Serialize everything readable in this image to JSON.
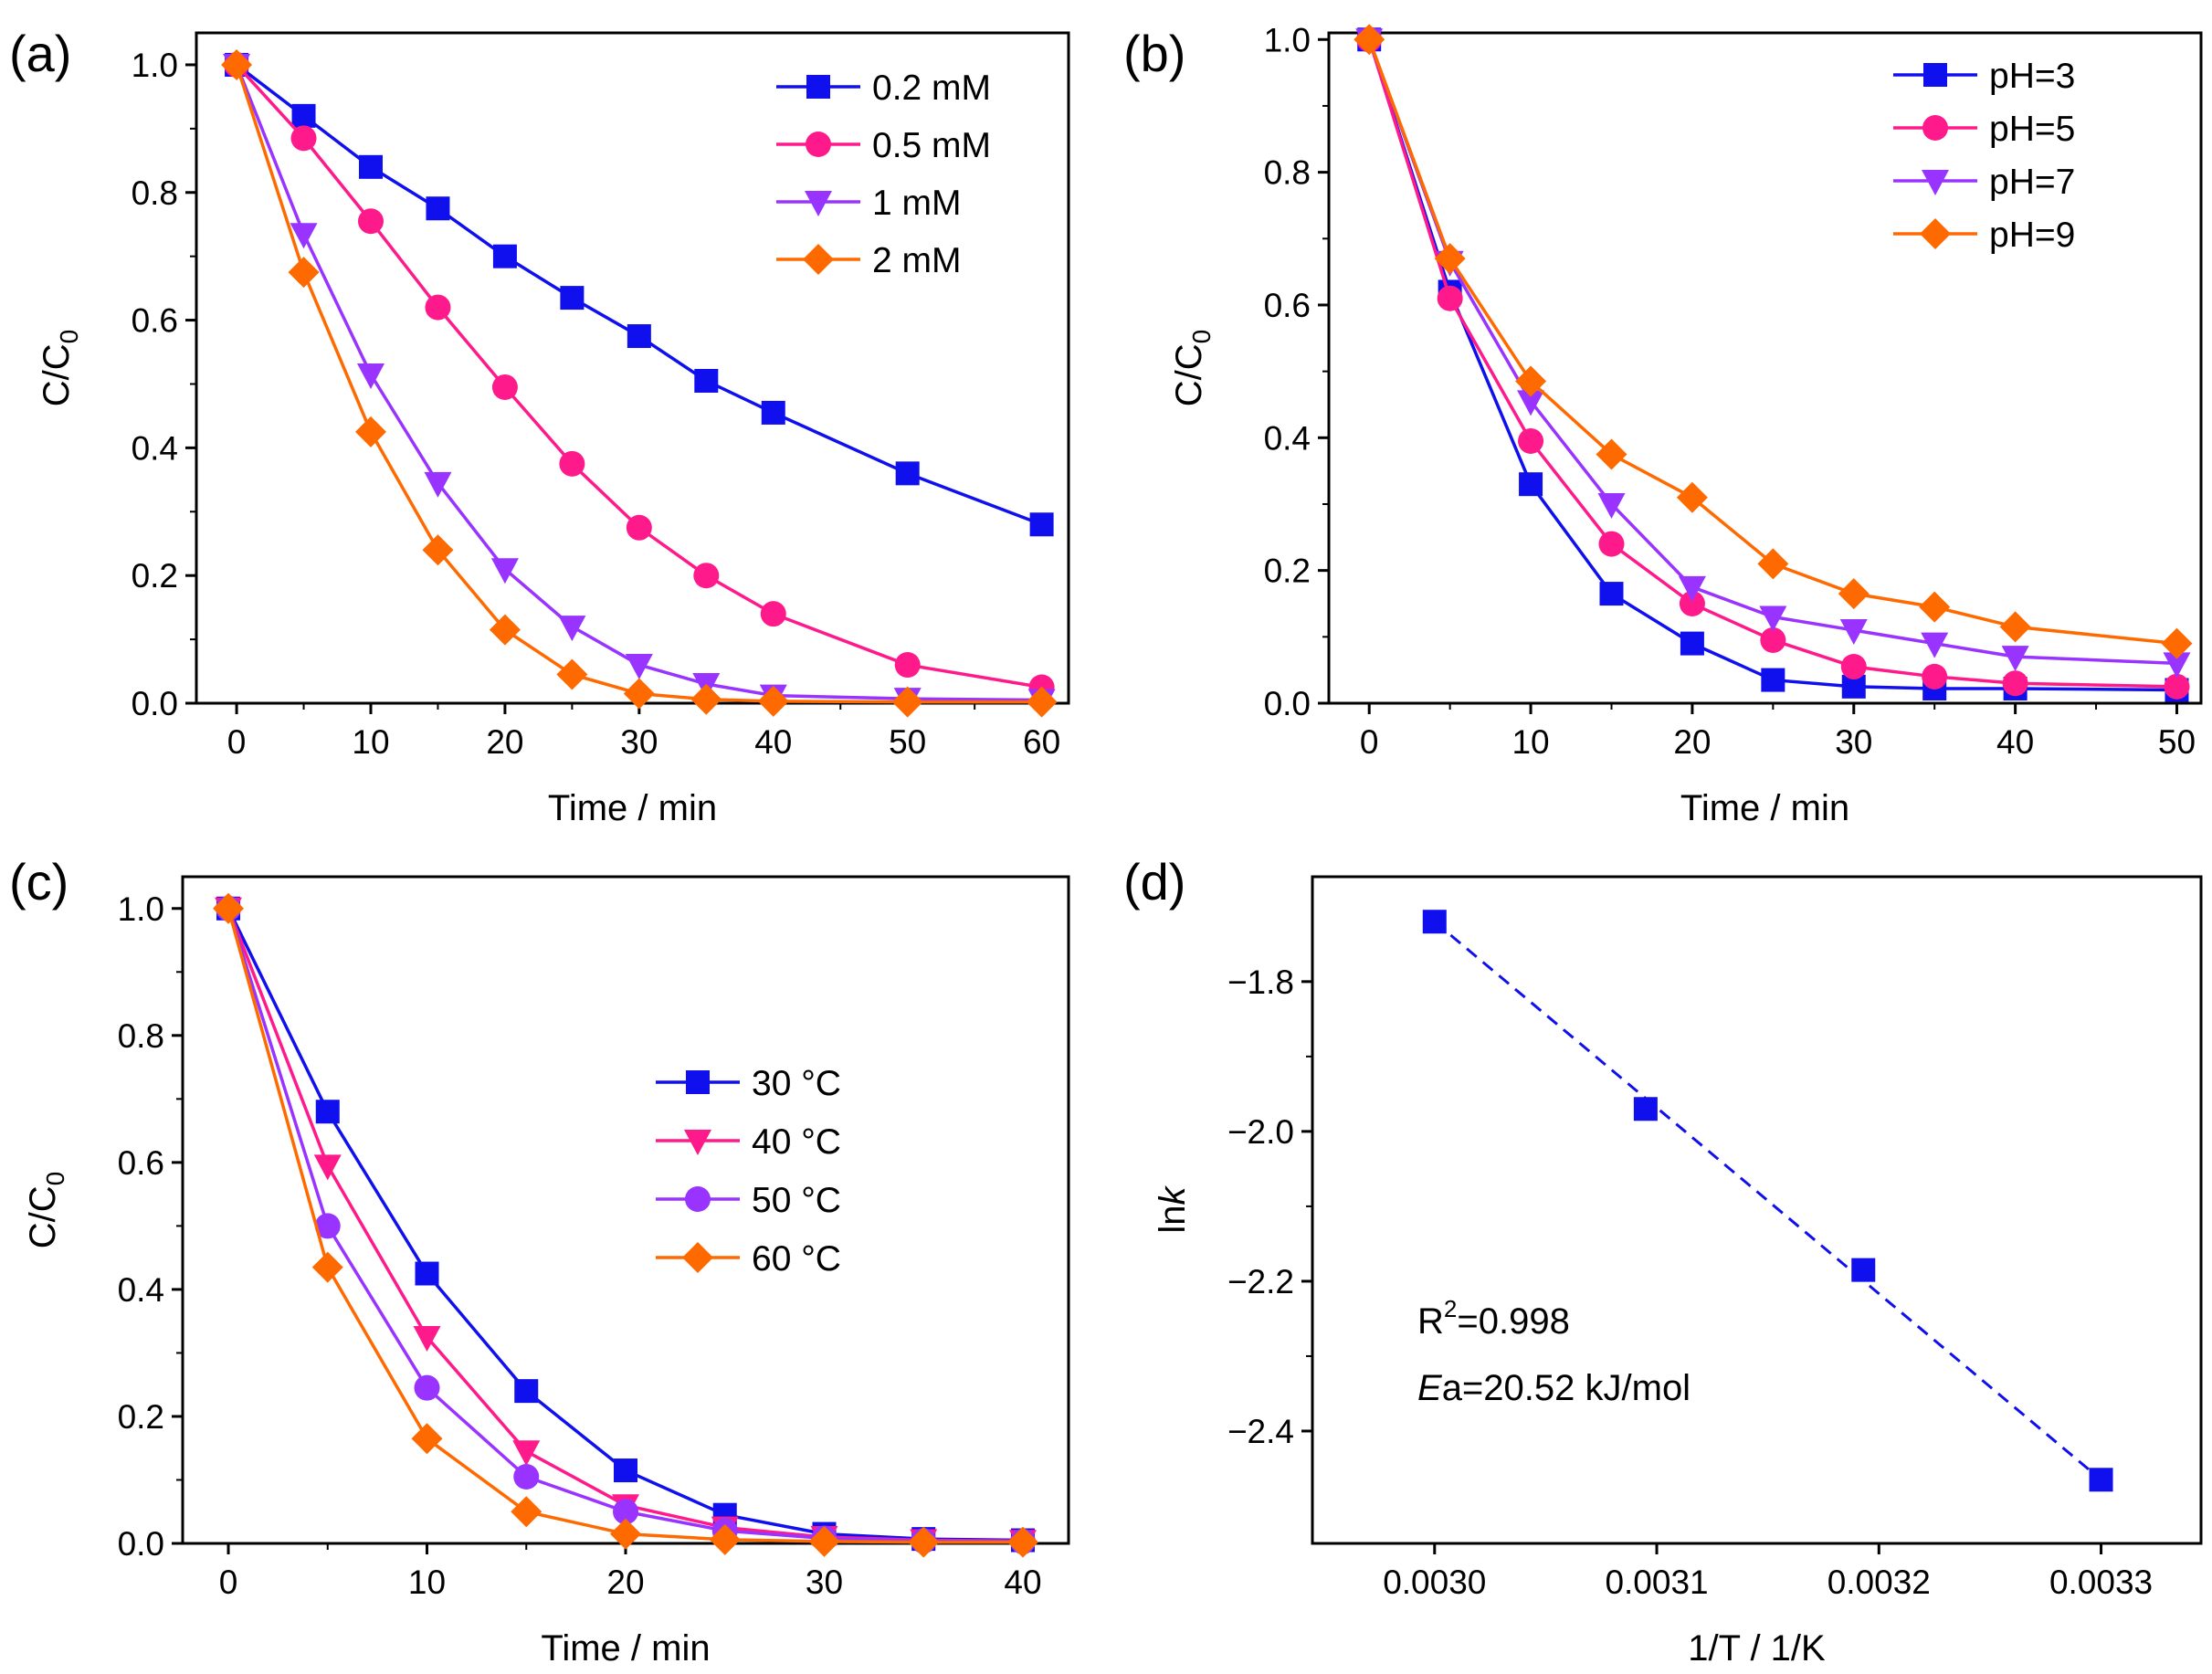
{
  "colors": {
    "blue": "#1010ee",
    "pink": "#ff1a8c",
    "purple": "#9933ff",
    "orange": "#ff6a00"
  },
  "chart_data": [
    {
      "panel": "(a)",
      "type": "line",
      "xlabel": "Time / min",
      "ylabel_main": "C/C",
      "ylabel_sub": "0",
      "xlim": [
        -3,
        62
      ],
      "ylim": [
        0,
        1.05
      ],
      "xticks": [
        0,
        10,
        20,
        30,
        40,
        50,
        60
      ],
      "yticks": [
        0.0,
        0.2,
        0.4,
        0.6,
        0.8,
        1.0
      ],
      "legend_position": "top-right",
      "series": [
        {
          "name": "0.2 mM",
          "marker": "square",
          "color": "blue",
          "x": [
            0,
            5,
            10,
            15,
            20,
            25,
            30,
            35,
            40,
            50,
            60
          ],
          "y": [
            1.0,
            0.92,
            0.84,
            0.775,
            0.7,
            0.635,
            0.575,
            0.505,
            0.455,
            0.36,
            0.28
          ]
        },
        {
          "name": "0.5 mM",
          "marker": "circle",
          "color": "pink",
          "x": [
            0,
            5,
            10,
            15,
            20,
            25,
            30,
            35,
            40,
            50,
            60
          ],
          "y": [
            1.0,
            0.885,
            0.755,
            0.62,
            0.495,
            0.375,
            0.275,
            0.2,
            0.14,
            0.06,
            0.025
          ]
        },
        {
          "name": "1 mM",
          "marker": "triangle-down",
          "color": "purple",
          "x": [
            0,
            5,
            10,
            15,
            20,
            25,
            30,
            35,
            40,
            50,
            60
          ],
          "y": [
            1.0,
            0.735,
            0.515,
            0.345,
            0.21,
            0.12,
            0.06,
            0.03,
            0.012,
            0.007,
            0.005
          ]
        },
        {
          "name": "2 mM",
          "marker": "diamond",
          "color": "orange",
          "x": [
            0,
            5,
            10,
            15,
            20,
            25,
            30,
            35,
            40,
            50,
            60
          ],
          "y": [
            1.0,
            0.675,
            0.425,
            0.24,
            0.115,
            0.045,
            0.015,
            0.006,
            0.003,
            0.002,
            0.002
          ]
        }
      ]
    },
    {
      "panel": "(b)",
      "type": "line",
      "xlabel": "Time / min",
      "ylabel_main": "C/C",
      "ylabel_sub": "0",
      "xlim": [
        -2.5,
        51.5
      ],
      "ylim": [
        0,
        1.01
      ],
      "xticks": [
        0,
        10,
        20,
        30,
        40,
        50
      ],
      "yticks": [
        0.0,
        0.2,
        0.4,
        0.6,
        0.8,
        1.0
      ],
      "legend_position": "top-right",
      "series": [
        {
          "name": "pH=3",
          "marker": "square",
          "color": "blue",
          "x": [
            0,
            5,
            10,
            15,
            20,
            25,
            30,
            35,
            40,
            50
          ],
          "y": [
            1.0,
            0.62,
            0.33,
            0.165,
            0.09,
            0.035,
            0.025,
            0.022,
            0.022,
            0.02
          ]
        },
        {
          "name": "pH=5",
          "marker": "circle",
          "color": "pink",
          "x": [
            0,
            5,
            10,
            15,
            20,
            25,
            30,
            35,
            40,
            50
          ],
          "y": [
            1.0,
            0.61,
            0.395,
            0.24,
            0.15,
            0.095,
            0.055,
            0.04,
            0.03,
            0.025
          ]
        },
        {
          "name": "pH=7",
          "marker": "triangle-down",
          "color": "purple",
          "x": [
            0,
            5,
            10,
            15,
            20,
            25,
            30,
            35,
            40,
            50
          ],
          "y": [
            1.0,
            0.665,
            0.455,
            0.3,
            0.175,
            0.13,
            0.11,
            0.09,
            0.07,
            0.06
          ]
        },
        {
          "name": "pH=9",
          "marker": "diamond",
          "color": "orange",
          "x": [
            0,
            5,
            10,
            15,
            20,
            25,
            30,
            35,
            40,
            50
          ],
          "y": [
            1.0,
            0.67,
            0.485,
            0.375,
            0.31,
            0.21,
            0.165,
            0.145,
            0.115,
            0.09
          ]
        }
      ]
    },
    {
      "panel": "(c)",
      "type": "line",
      "xlabel": "Time / min",
      "ylabel_main": "C/C",
      "ylabel_sub": "0",
      "xlim": [
        -2.3,
        42.3
      ],
      "ylim": [
        0,
        1.05
      ],
      "xticks": [
        0,
        10,
        20,
        30,
        40
      ],
      "yticks": [
        0.0,
        0.2,
        0.4,
        0.6,
        0.8,
        1.0
      ],
      "legend_position": "center-right",
      "series": [
        {
          "name": "30 °C",
          "marker": "square",
          "color": "blue",
          "x": [
            0,
            5,
            10,
            15,
            20,
            25,
            30,
            35,
            40
          ],
          "y": [
            1.0,
            0.68,
            0.425,
            0.24,
            0.115,
            0.045,
            0.015,
            0.007,
            0.005
          ]
        },
        {
          "name": "40 °C",
          "marker": "triangle-down",
          "color": "pink",
          "x": [
            0,
            5,
            10,
            15,
            20,
            25,
            30,
            35,
            40
          ],
          "y": [
            1.0,
            0.595,
            0.325,
            0.145,
            0.06,
            0.025,
            0.01,
            0.005,
            0.004
          ]
        },
        {
          "name": "50 °C",
          "marker": "circle",
          "color": "purple",
          "x": [
            0,
            5,
            10,
            15,
            20,
            25,
            30,
            35,
            40
          ],
          "y": [
            1.0,
            0.5,
            0.245,
            0.105,
            0.05,
            0.02,
            0.008,
            0.004,
            0.003
          ]
        },
        {
          "name": "60 °C",
          "marker": "diamond",
          "color": "orange",
          "x": [
            0,
            5,
            10,
            15,
            20,
            25,
            30,
            35,
            40
          ],
          "y": [
            1.0,
            0.435,
            0.165,
            0.05,
            0.015,
            0.006,
            0.003,
            0.002,
            0.002
          ]
        }
      ]
    },
    {
      "panel": "(d)",
      "type": "scatter",
      "xlabel": "1/T / 1/K",
      "ylabel_main": "ln",
      "ylabel_italic": "k",
      "xlim": [
        0.002945,
        0.003345
      ],
      "ylim": [
        -2.55,
        -1.66
      ],
      "xticks": [
        0.003,
        0.0031,
        0.0032,
        0.0033
      ],
      "xtick_labels": [
        "0.0030",
        "0.0031",
        "0.0032",
        "0.0033"
      ],
      "yticks": [
        -1.8,
        -2.0,
        -2.2,
        -2.4
      ],
      "ytick_labels": [
        "−1.8",
        "−2.0",
        "−2.2",
        "−2.4"
      ],
      "series": [
        {
          "name": "",
          "marker": "square",
          "color": "blue",
          "x": [
            0.003,
            0.003095,
            0.003193,
            0.0033
          ],
          "y": [
            -1.72,
            -1.97,
            -2.185,
            -2.465
          ]
        }
      ],
      "fit_line": {
        "style": "dashed",
        "color": "blue",
        "x": [
          0.003,
          0.0033
        ],
        "y": [
          -1.72,
          -2.465
        ]
      },
      "annotation": {
        "r2_main": "R",
        "r2_sup": "2",
        "r2_value": "=0.998",
        "ea_italic": "E",
        "ea_rest": "a=20.52 kJ/mol"
      }
    }
  ]
}
